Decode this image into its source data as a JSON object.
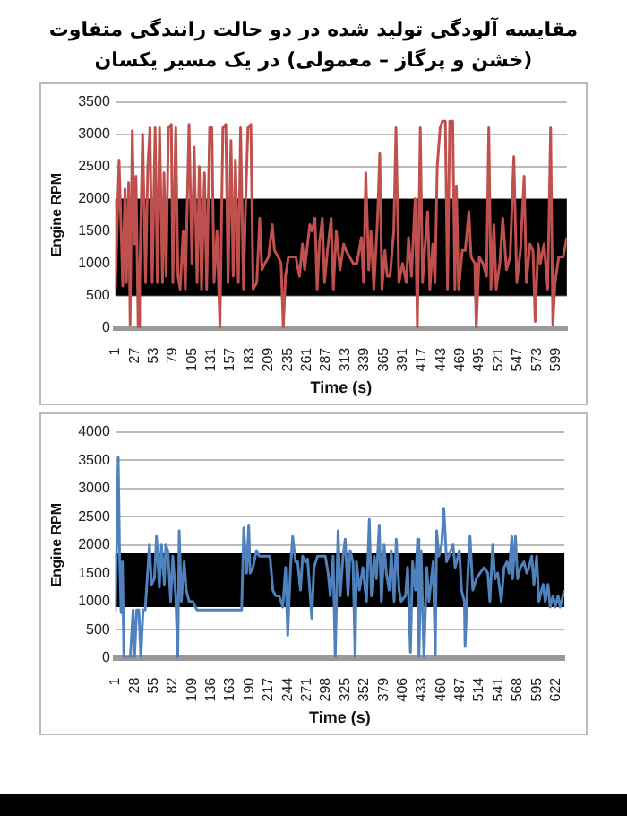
{
  "chart_data": [
    {
      "type": "line",
      "title": "مقایسه آلودگی  تولید شده در دو حالت رانندگی متفاوت (خشن و پرگاز – معمولی) در یک مسیر یکسان",
      "xlabel": "Time (s)",
      "ylabel": "Engine RPM",
      "xlim": [
        1,
        614
      ],
      "xticks": [
        1,
        27,
        53,
        79,
        105,
        131,
        157,
        183,
        209,
        235,
        261,
        287,
        313,
        339,
        365,
        391,
        417,
        443,
        469,
        495,
        521,
        547,
        573,
        599
      ],
      "ylim": [
        0,
        3500
      ],
      "yticks": [
        0,
        500,
        1000,
        1500,
        2000,
        2500,
        3000,
        3500
      ],
      "grid": "y",
      "legend": false,
      "marker": "none",
      "bands": [
        {
          "axis": "y",
          "from": 500,
          "to": 2000,
          "color": "#000000"
        }
      ],
      "series": [
        {
          "color": "#c0504d",
          "x": [
            1,
            6,
            11,
            14,
            16,
            19,
            21,
            24,
            27,
            29,
            32,
            34,
            38,
            42,
            45,
            48,
            51,
            55,
            58,
            61,
            65,
            67,
            70,
            73,
            77,
            79,
            83,
            86,
            89,
            93,
            96,
            101,
            105,
            108,
            112,
            115,
            118,
            122,
            125,
            129,
            132,
            135,
            139,
            143,
            147,
            151,
            154,
            158,
            161,
            164,
            168,
            171,
            175,
            178,
            181,
            185,
            188,
            193,
            197,
            200,
            204,
            209,
            214,
            217,
            222,
            226,
            229,
            232,
            236,
            241,
            246,
            251,
            255,
            258,
            261,
            265,
            268,
            272,
            275,
            278,
            282,
            285,
            289,
            294,
            297,
            301,
            306,
            311,
            314,
            319,
            324,
            329,
            335,
            338,
            341,
            345,
            348,
            352,
            357,
            360,
            363,
            367,
            370,
            374,
            379,
            382,
            386,
            391,
            396,
            399,
            403,
            408,
            411,
            415,
            418,
            421,
            425,
            428,
            432,
            435,
            438,
            442,
            445,
            449,
            452,
            455,
            459,
            462,
            464,
            467,
            472,
            476,
            481,
            484,
            489,
            491,
            495,
            500,
            505,
            508,
            511,
            515,
            518,
            523,
            527,
            532,
            537,
            542,
            546,
            551,
            556,
            559,
            564,
            568,
            571,
            575,
            578,
            583,
            588,
            592,
            595,
            598,
            603,
            609,
            614
          ],
          "values": [
            600,
            2600,
            650,
            2150,
            700,
            2250,
            50,
            3050,
            1300,
            2350,
            0,
            700,
            3000,
            700,
            2500,
            3100,
            700,
            3100,
            700,
            3100,
            700,
            2400,
            800,
            3100,
            3150,
            700,
            3100,
            800,
            600,
            1500,
            600,
            3150,
            1000,
            2800,
            700,
            2500,
            600,
            2400,
            600,
            3100,
            3100,
            700,
            1500,
            0,
            3100,
            3150,
            700,
            2900,
            800,
            2600,
            700,
            3100,
            600,
            2000,
            3100,
            3150,
            600,
            700,
            1700,
            900,
            1000,
            1100,
            1600,
            1200,
            1100,
            1000,
            0,
            800,
            1100,
            1100,
            1100,
            800,
            1300,
            900,
            1200,
            1600,
            1500,
            1700,
            600,
            1300,
            1700,
            700,
            1200,
            1700,
            600,
            1500,
            900,
            1300,
            1200,
            1100,
            1000,
            1000,
            1400,
            700,
            2400,
            900,
            1500,
            600,
            1700,
            2700,
            600,
            1200,
            800,
            800,
            1500,
            3100,
            700,
            1000,
            700,
            1400,
            800,
            2000,
            0,
            3100,
            700,
            1200,
            1800,
            600,
            1300,
            700,
            2500,
            3100,
            3200,
            3200,
            600,
            3200,
            3200,
            600,
            2200,
            600,
            1200,
            1200,
            1800,
            1100,
            1000,
            0,
            1100,
            1000,
            800,
            3100,
            600,
            1600,
            600,
            1000,
            1700,
            900,
            1100,
            2650,
            700,
            1200,
            2350,
            700,
            1300,
            1200,
            100,
            1300,
            1000,
            1300,
            600,
            3100,
            50,
            700,
            1100,
            1100,
            1400
          ]
        }
      ]
    },
    {
      "type": "line",
      "xlabel": "Time (s)",
      "ylabel": "Engine RPM",
      "xlim": [
        1,
        634
      ],
      "xticks": [
        1,
        28,
        55,
        82,
        109,
        136,
        163,
        190,
        217,
        244,
        271,
        298,
        325,
        352,
        379,
        406,
        433,
        460,
        487,
        514,
        541,
        568,
        595,
        622
      ],
      "ylim": [
        0,
        4000
      ],
      "yticks": [
        0,
        500,
        1000,
        1500,
        2000,
        2500,
        3000,
        3500,
        4000
      ],
      "grid": "y",
      "legend": false,
      "marker": "none",
      "bands": [
        {
          "axis": "y",
          "from": 900,
          "to": 1850,
          "color": "#000000"
        }
      ],
      "series": [
        {
          "color": "#4f81bd",
          "x": [
            1,
            5,
            7,
            9,
            11,
            13,
            22,
            26,
            28,
            31,
            34,
            37,
            40,
            43,
            49,
            52,
            56,
            59,
            63,
            66,
            70,
            72,
            75,
            79,
            82,
            86,
            89,
            91,
            94,
            98,
            101,
            105,
            110,
            116,
            158,
            179,
            182,
            186,
            189,
            191,
            195,
            200,
            204,
            211,
            219,
            223,
            227,
            232,
            237,
            241,
            244,
            248,
            251,
            255,
            258,
            262,
            265,
            269,
            272,
            278,
            281,
            286,
            292,
            297,
            301,
            304,
            308,
            311,
            315,
            318,
            322,
            325,
            329,
            332,
            336,
            339,
            341,
            345,
            350,
            355,
            359,
            362,
            366,
            369,
            373,
            376,
            380,
            383,
            387,
            390,
            394,
            397,
            401,
            404,
            410,
            413,
            417,
            420,
            424,
            427,
            429,
            432,
            436,
            440,
            443,
            449,
            452,
            454,
            457,
            461,
            464,
            468,
            471,
            477,
            480,
            486,
            489,
            493,
            494,
            498,
            501,
            505,
            510,
            515,
            521,
            526,
            529,
            533,
            536,
            540,
            545,
            549,
            553,
            556,
            560,
            561,
            565,
            568,
            572,
            577,
            581,
            584,
            588,
            591,
            595,
            598,
            604,
            607,
            611,
            614,
            618,
            621,
            625,
            628,
            634
          ],
          "values": [
            800,
            3550,
            1800,
            800,
            1700,
            0,
            0,
            850,
            0,
            850,
            850,
            0,
            850,
            850,
            2000,
            1300,
            1400,
            2150,
            1250,
            2000,
            1300,
            2000,
            1900,
            1000,
            1800,
            1100,
            0,
            2250,
            1000,
            1700,
            1200,
            1000,
            1000,
            850,
            850,
            850,
            2300,
            1500,
            2350,
            1500,
            1600,
            1900,
            1800,
            1800,
            1800,
            1200,
            1100,
            1100,
            900,
            1600,
            400,
            1600,
            2150,
            1700,
            1700,
            1200,
            1800,
            1700,
            1750,
            700,
            1600,
            1800,
            1800,
            1800,
            1500,
            1100,
            1800,
            0,
            2250,
            1100,
            1800,
            2100,
            1100,
            1900,
            1700,
            0,
            1700,
            1200,
            1600,
            1000,
            2450,
            1100,
            1800,
            1400,
            2350,
            1000,
            2000,
            1500,
            1200,
            1900,
            1000,
            2100,
            1200,
            1000,
            1100,
            1600,
            100,
            1700,
            1200,
            2100,
            0,
            1900,
            0,
            1600,
            1000,
            1700,
            50,
            2250,
            1800,
            2000,
            2650,
            1700,
            1800,
            2000,
            1600,
            1900,
            1200,
            1000,
            200,
            1500,
            2150,
            1200,
            1400,
            1500,
            1600,
            1500,
            1000,
            2000,
            1400,
            1500,
            1000,
            1600,
            1700,
            1500,
            2150,
            1400,
            2150,
            1400,
            1600,
            1700,
            1500,
            1600,
            1800,
            1300,
            1800,
            1000,
            1300,
            1000,
            1300,
            900,
            1100,
            900,
            1100,
            900,
            1200
          ]
        }
      ]
    }
  ]
}
